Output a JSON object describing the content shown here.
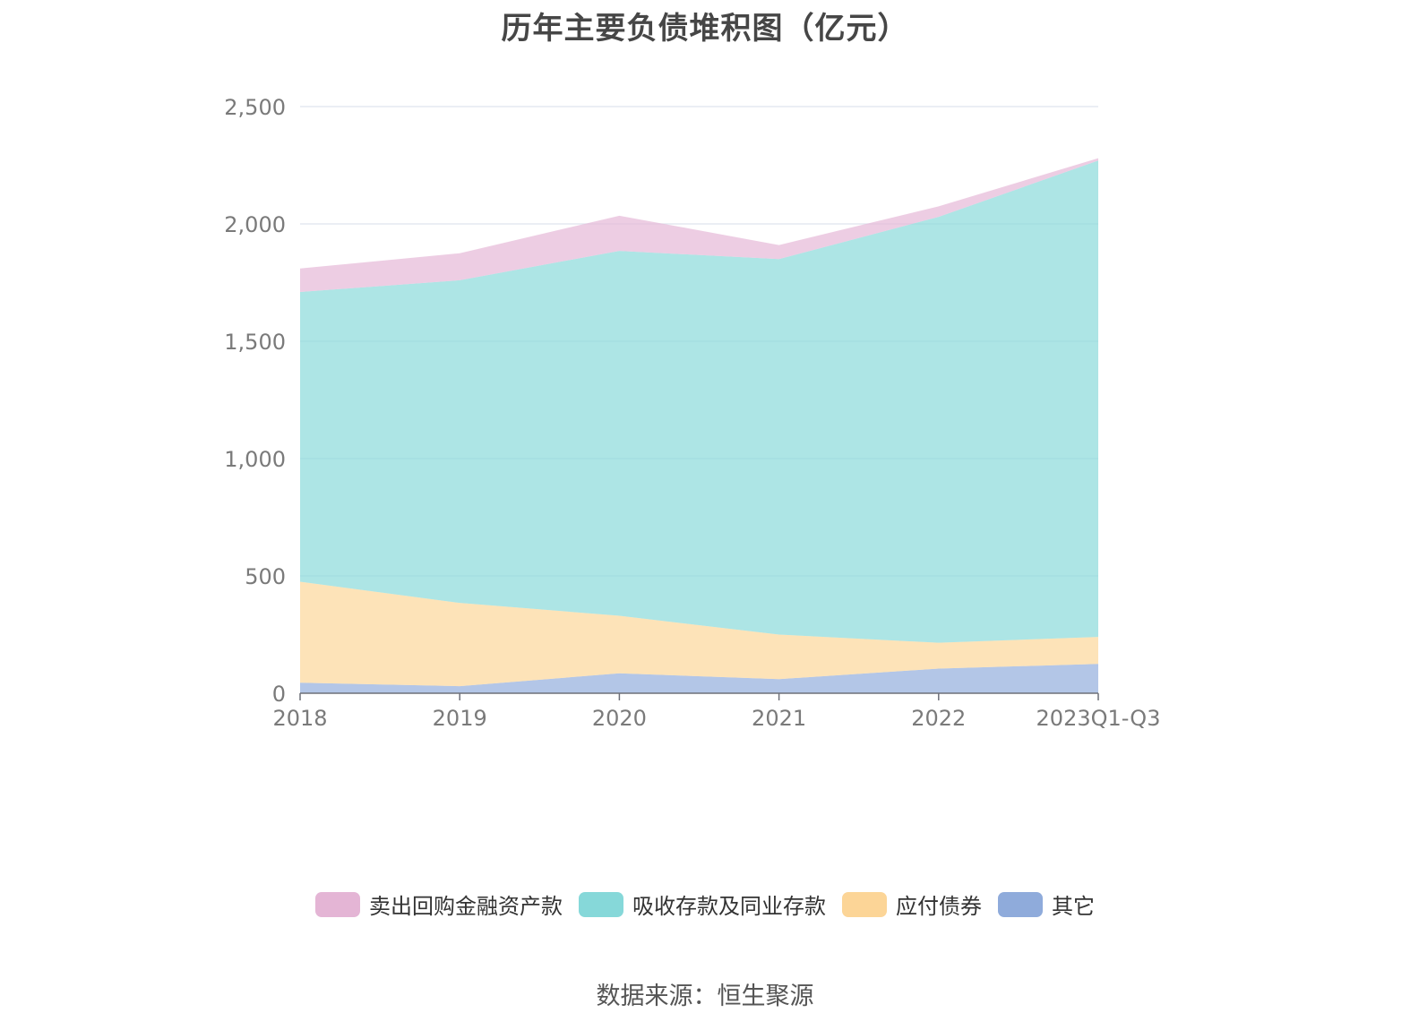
{
  "chart_data": {
    "type": "area",
    "stacked": true,
    "title": "历年主要负债堆积图（亿元）",
    "categories": [
      "2018",
      "2019",
      "2020",
      "2021",
      "2022",
      "2023Q1-Q3"
    ],
    "ylim": [
      0,
      2500
    ],
    "yticks": [
      0,
      500,
      1000,
      1500,
      2000,
      2500
    ],
    "ytick_labels": [
      "0",
      "500",
      "1,000",
      "1,500",
      "2,000",
      "2,500"
    ],
    "grid": true,
    "legend_position": "bottom",
    "series": [
      {
        "name": "其它",
        "color": "#8fabdb",
        "values": [
          45,
          30,
          85,
          60,
          105,
          125
        ]
      },
      {
        "name": "应付债券",
        "color": "#fcd597",
        "values": [
          430,
          355,
          245,
          190,
          110,
          115
        ]
      },
      {
        "name": "吸收存款及同业存款",
        "color": "#86d8d9",
        "values": [
          1235,
          1375,
          1555,
          1600,
          1815,
          2030
        ]
      },
      {
        "name": "卖出回购金融资产款",
        "color": "#e4b5d5",
        "values": [
          100,
          115,
          150,
          60,
          45,
          10
        ]
      }
    ],
    "source": "数据来源：恒生聚源"
  }
}
